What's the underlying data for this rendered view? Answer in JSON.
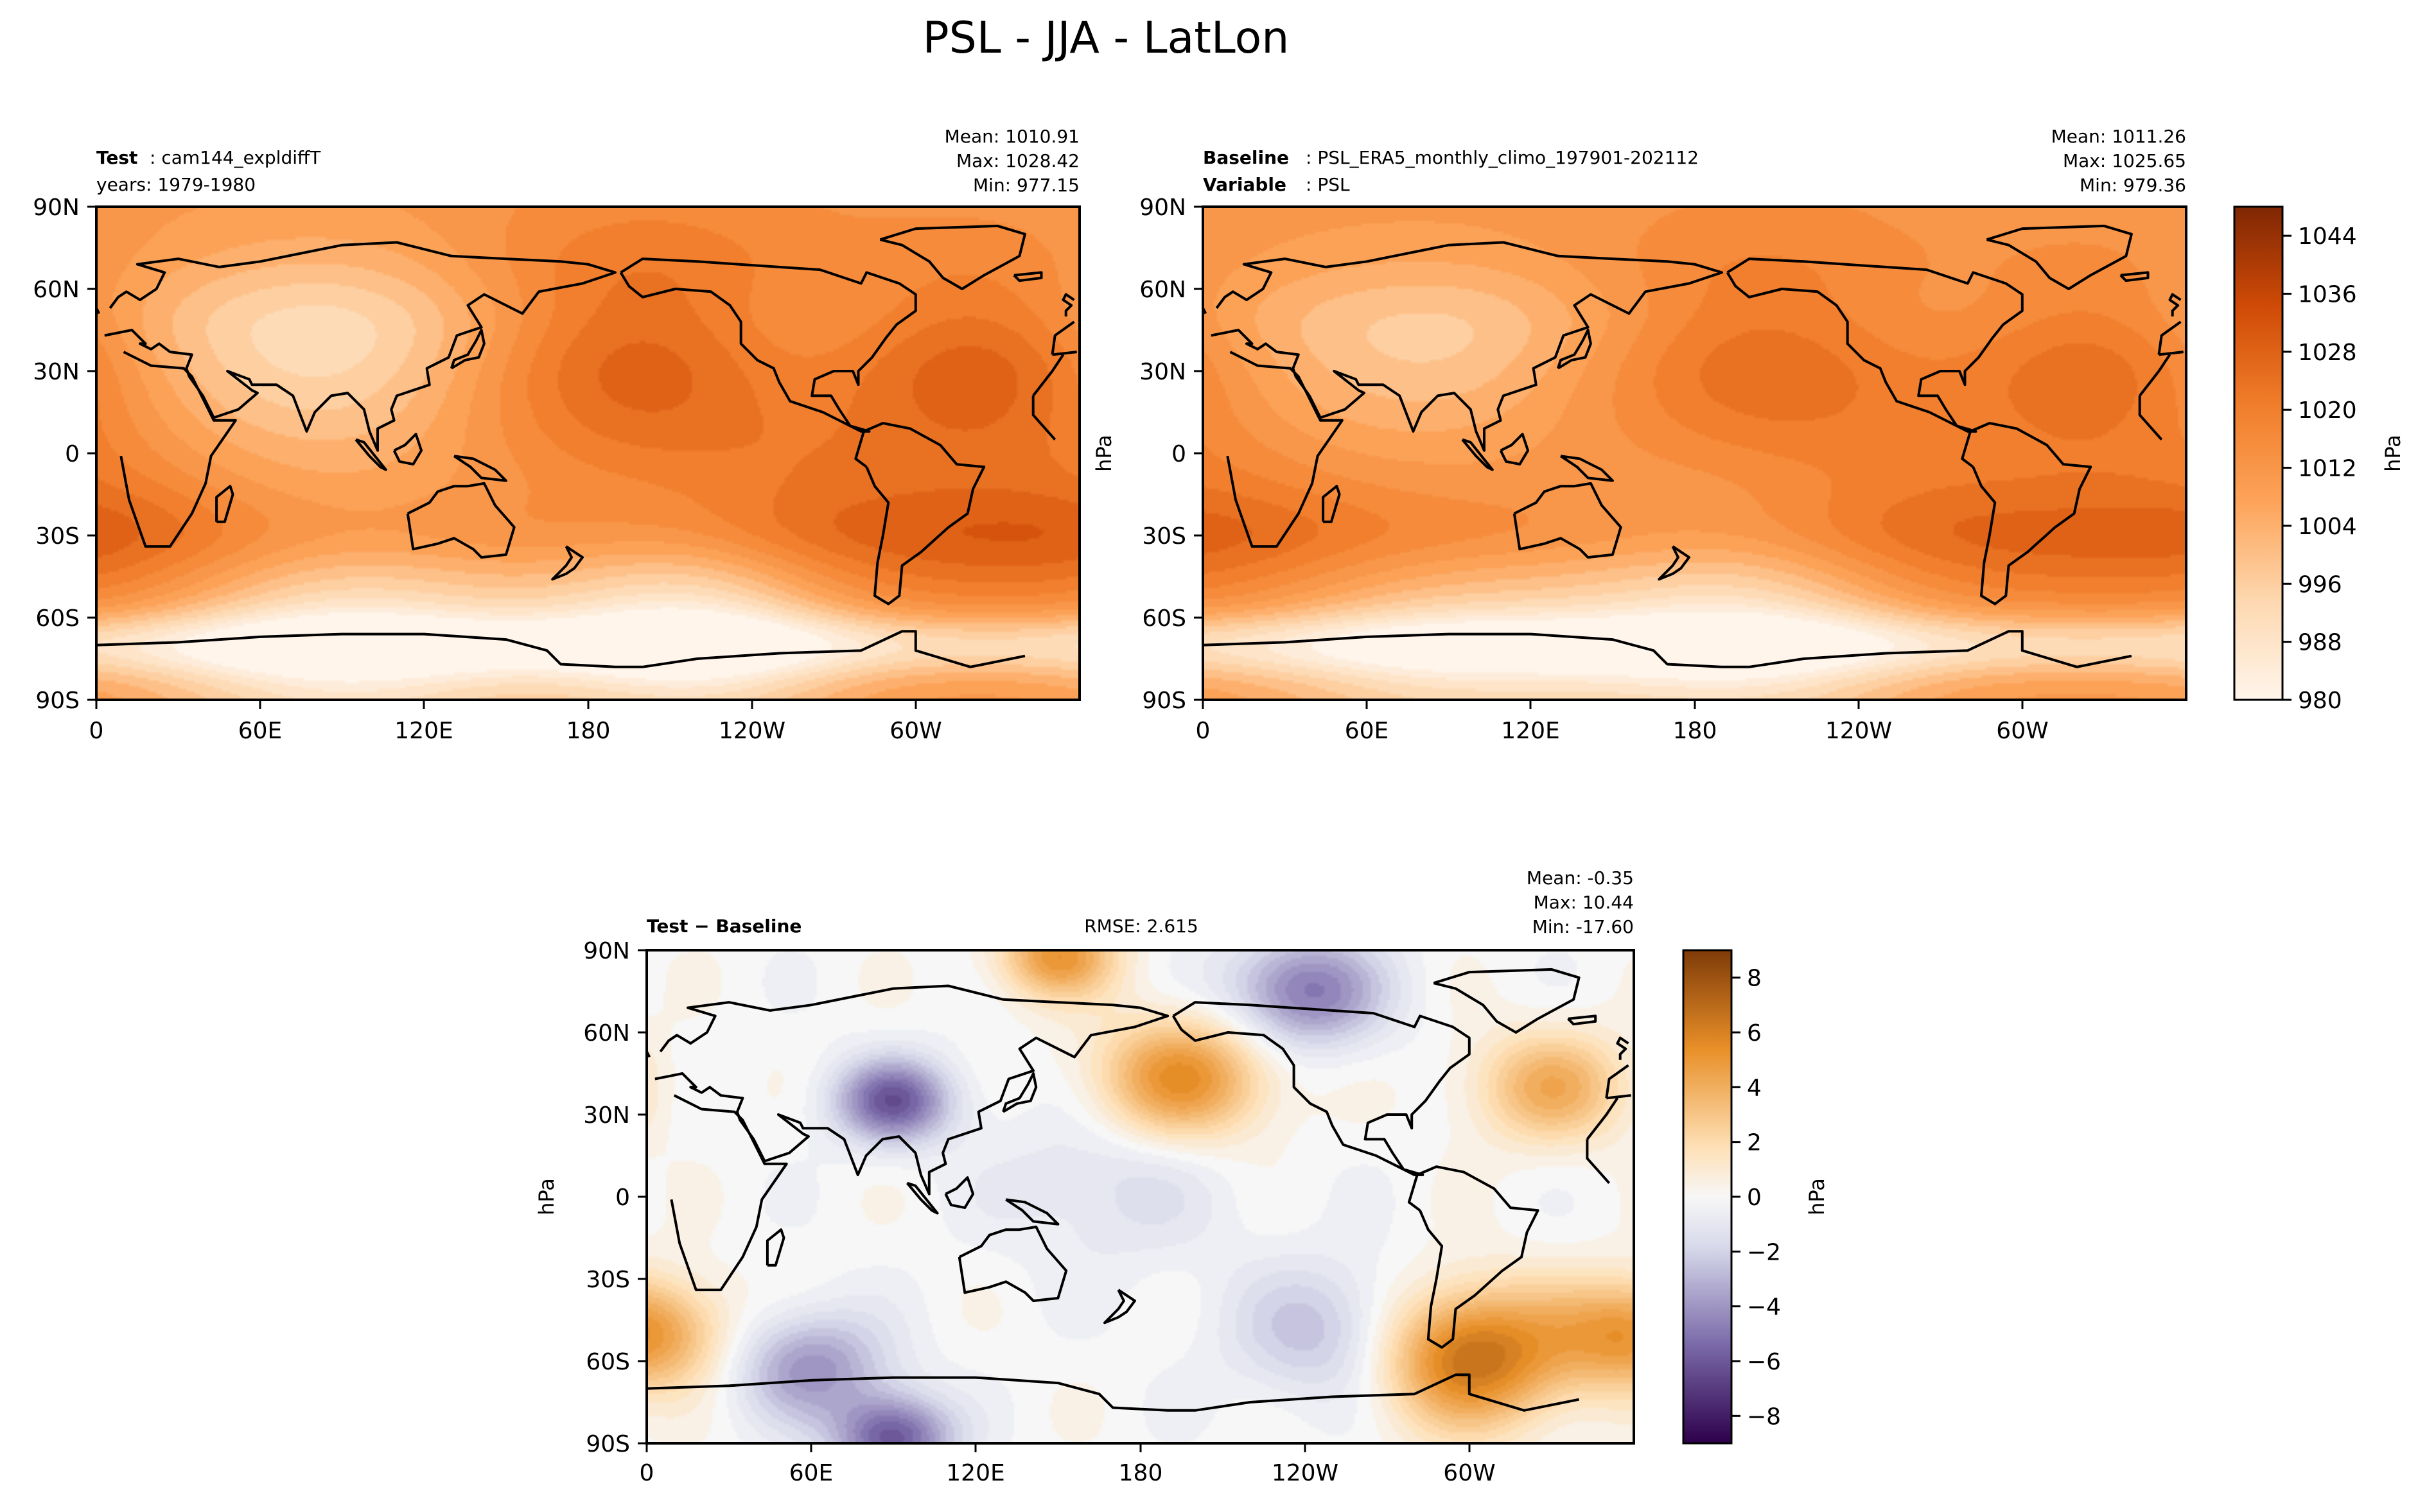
{
  "figure": {
    "title": "PSL - JJA - LatLon"
  },
  "chart_data": [
    {
      "type": "heatmap",
      "panel": "test",
      "header_bold": "Test",
      "header_text": ": cam144_expldiffT",
      "subheader": "years: 1979-1980",
      "stats": {
        "mean": "Mean: 1010.91",
        "max": "Max: 1028.42",
        "min": "Min: 977.15"
      },
      "xticks": [
        "0",
        "60E",
        "120E",
        "180",
        "120W",
        "60W"
      ],
      "yticks": [
        "90N",
        "60N",
        "30N",
        "0",
        "30S",
        "60S",
        "90S"
      ],
      "ylabel": "",
      "value_range": [
        980,
        1048
      ],
      "features": [
        {
          "lon": 200,
          "lat": 38,
          "value": 1030,
          "spread": 45
        },
        {
          "lon": 325,
          "lat": 35,
          "value": 1029,
          "spread": 35
        },
        {
          "lon": 55,
          "lat": 28,
          "value": 1001,
          "spread": 45
        },
        {
          "lon": 100,
          "lat": 35,
          "value": 1000,
          "spread": 40
        },
        {
          "lon": 250,
          "lat": 32,
          "value": 1008,
          "spread": 28
        },
        {
          "lon": 80,
          "lat": -30,
          "value": 1022,
          "spread": 50
        },
        {
          "lon": 265,
          "lat": -30,
          "value": 1023,
          "spread": 45
        },
        {
          "lon": 0,
          "lat": -30,
          "value": 1022,
          "spread": 40
        },
        {
          "lon": 90,
          "lat": -67,
          "value": 982,
          "spread": 50
        },
        {
          "lon": 220,
          "lat": -65,
          "value": 983,
          "spread": 40
        }
      ]
    },
    {
      "type": "heatmap",
      "panel": "baseline",
      "header_bold": "Baseline",
      "header_text": ": PSL_ERA5_monthly_climo_197901-202112",
      "subheader_bold": "Variable",
      "subheader_text": ": PSL",
      "stats": {
        "mean": "Mean: 1011.26",
        "max": "Max: 1025.65",
        "min": "Min: 979.36"
      },
      "xticks": [
        "0",
        "60E",
        "120E",
        "180",
        "120W",
        "60W"
      ],
      "yticks": [
        "90N",
        "60N",
        "30N",
        "0",
        "30S",
        "60S",
        "90S"
      ],
      "ylabel": "hPa",
      "value_range": [
        980,
        1048
      ],
      "features": [
        {
          "lon": 205,
          "lat": 38,
          "value": 1026,
          "spread": 40
        },
        {
          "lon": 325,
          "lat": 35,
          "value": 1025,
          "spread": 32
        },
        {
          "lon": 55,
          "lat": 28,
          "value": 1003,
          "spread": 40
        },
        {
          "lon": 100,
          "lat": 35,
          "value": 1004,
          "spread": 35
        },
        {
          "lon": 80,
          "lat": -30,
          "value": 1021,
          "spread": 50
        },
        {
          "lon": 265,
          "lat": -30,
          "value": 1021,
          "spread": 45
        },
        {
          "lon": 0,
          "lat": -30,
          "value": 1020,
          "spread": 40
        },
        {
          "lon": 90,
          "lat": -70,
          "value": 990,
          "spread": 50
        },
        {
          "lon": 200,
          "lat": -68,
          "value": 988,
          "spread": 45
        }
      ]
    },
    {
      "type": "heatmap",
      "panel": "difference",
      "header_bold": "Test − Baseline",
      "rmse": "RMSE: 2.615",
      "stats": {
        "mean": "Mean: -0.35",
        "max": "Max: 10.44",
        "min": "Min: -17.60"
      },
      "xticks": [
        "0",
        "60E",
        "120E",
        "180",
        "120W",
        "60W"
      ],
      "yticks": [
        "90N",
        "60N",
        "30N",
        "0",
        "30S",
        "60S",
        "90S"
      ],
      "ylabel": "hPa",
      "value_range": [
        -9,
        9
      ],
      "features": [
        {
          "lon": 195,
          "lat": 43,
          "value": 5.5,
          "spread": 22
        },
        {
          "lon": 330,
          "lat": 40,
          "value": 4,
          "spread": 20
        },
        {
          "lon": 300,
          "lat": -58,
          "value": 7,
          "spread": 25
        },
        {
          "lon": 0,
          "lat": -50,
          "value": 5,
          "spread": 20
        },
        {
          "lon": 150,
          "lat": 88,
          "value": 5,
          "spread": 15
        },
        {
          "lon": 90,
          "lat": 35,
          "value": -6,
          "spread": 15
        },
        {
          "lon": 240,
          "lat": 75,
          "value": -5,
          "spread": 20
        },
        {
          "lon": 60,
          "lat": -62,
          "value": -4,
          "spread": 20
        },
        {
          "lon": 170,
          "lat": 5,
          "value": -1.5,
          "spread": 30
        },
        {
          "lon": 250,
          "lat": -50,
          "value": -3,
          "spread": 25
        },
        {
          "lon": 90,
          "lat": -88,
          "value": -6,
          "spread": 15
        }
      ]
    }
  ],
  "colorbars": [
    {
      "panel": "absolute",
      "label": "hPa",
      "min": 980,
      "max": 1048,
      "ticks": [
        "1044",
        "1036",
        "1028",
        "1020",
        "1012",
        "1004",
        "996",
        "988",
        "980"
      ],
      "tick_values": [
        1044,
        1036,
        1028,
        1020,
        1012,
        1004,
        996,
        988,
        980
      ]
    },
    {
      "panel": "difference",
      "label": "hPa",
      "min": -9,
      "max": 9,
      "ticks": [
        "8",
        "6",
        "4",
        "2",
        "0",
        "−2",
        "−4",
        "−6",
        "−8"
      ],
      "tick_values": [
        8,
        6,
        4,
        2,
        0,
        -2,
        -4,
        -6,
        -8
      ]
    }
  ],
  "colors": {
    "orange_min": "#fff5eb",
    "orange_max": "#7f2704",
    "diff_neg": "#2d004b",
    "diff_zero": "#f7f7f7",
    "diff_pos": "#7f3b08",
    "coastline": "#000000"
  }
}
